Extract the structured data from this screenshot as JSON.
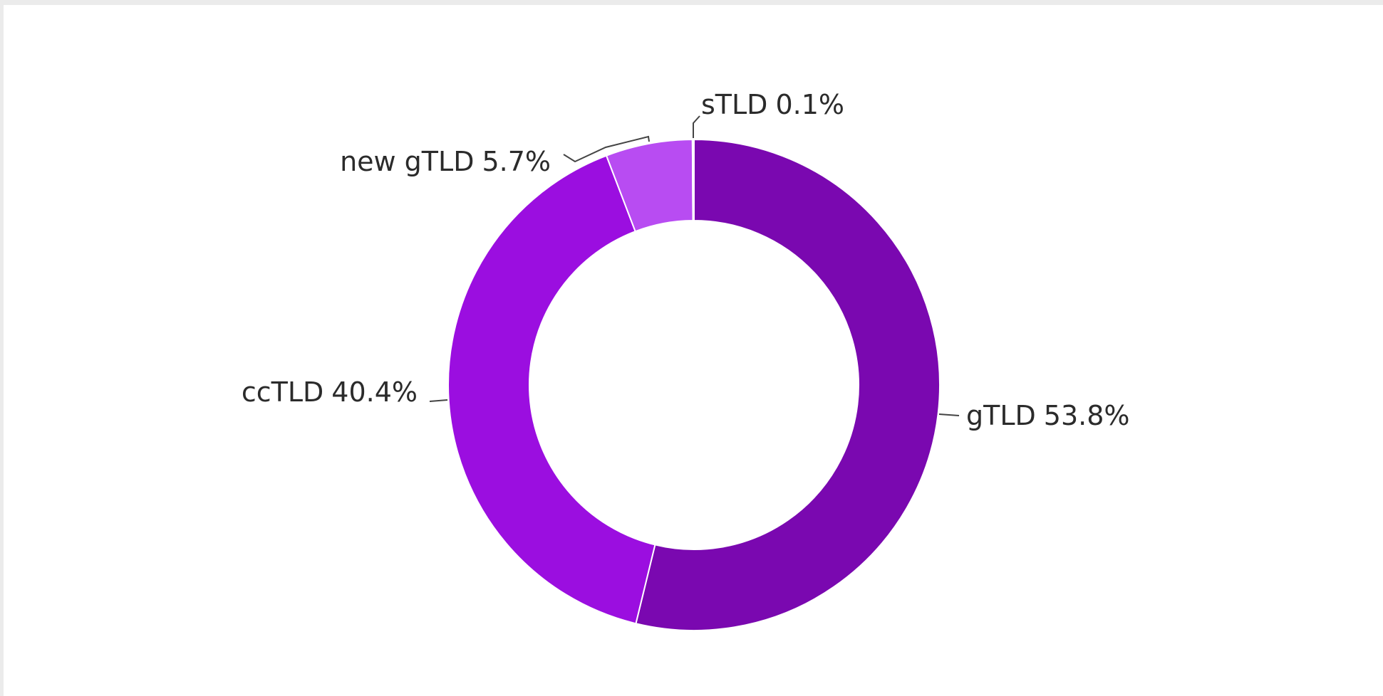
{
  "chart_data": {
    "type": "donut",
    "categories": [
      "gTLD",
      "ccTLD",
      "new gTLD",
      "sTLD"
    ],
    "values": [
      53.8,
      40.4,
      5.7,
      0.1
    ],
    "value_labels": [
      "53.8%",
      "40.4%",
      "5.7%",
      "0.1%"
    ],
    "colors": [
      "#7a08b0",
      "#9b0ee0",
      "#b84cf2",
      "#cf86f6"
    ]
  }
}
